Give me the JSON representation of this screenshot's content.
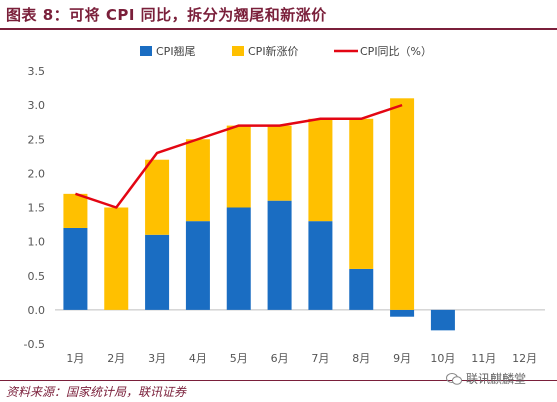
{
  "title": "图表 8：可将 CPI 同比，拆分为翘尾和新涨价",
  "source": "资料来源：国家统计局，联讯证券",
  "watermark": "联讯麒麟堂",
  "colors": {
    "carryover": "#1a6dc2",
    "new_price": "#ffc000",
    "yoy": "#e30613",
    "brand": "#7a1f3a"
  },
  "chart_data": {
    "type": "bar",
    "stacked": true,
    "categories": [
      "1月",
      "2月",
      "3月",
      "4月",
      "5月",
      "6月",
      "7月",
      "8月",
      "9月",
      "10月",
      "11月",
      "12月"
    ],
    "series": [
      {
        "name": "CPI翘尾",
        "type": "bar",
        "color": "#1a6dc2",
        "values": [
          1.2,
          0.0,
          1.1,
          1.3,
          1.5,
          1.6,
          1.3,
          0.6,
          -0.1,
          -0.3,
          null,
          null
        ]
      },
      {
        "name": "CPI新涨价",
        "type": "bar",
        "color": "#ffc000",
        "values": [
          0.5,
          1.5,
          1.1,
          1.2,
          1.2,
          1.1,
          1.5,
          2.2,
          3.1,
          null,
          null,
          null
        ]
      },
      {
        "name": "CPI同比（%）",
        "type": "line",
        "color": "#e30613",
        "values": [
          1.7,
          1.5,
          2.3,
          2.5,
          2.7,
          2.7,
          2.8,
          2.8,
          3.0,
          null,
          null,
          null
        ]
      }
    ],
    "ylim": [
      -0.5,
      3.5
    ],
    "yticks": [
      "-0.5",
      "0.0",
      "0.5",
      "1.0",
      "1.5",
      "2.0",
      "2.5",
      "3.0",
      "3.5"
    ],
    "ytick_values": [
      -0.5,
      0.0,
      0.5,
      1.0,
      1.5,
      2.0,
      2.5,
      3.0,
      3.5
    ],
    "legend_position": "top",
    "grid": false
  }
}
